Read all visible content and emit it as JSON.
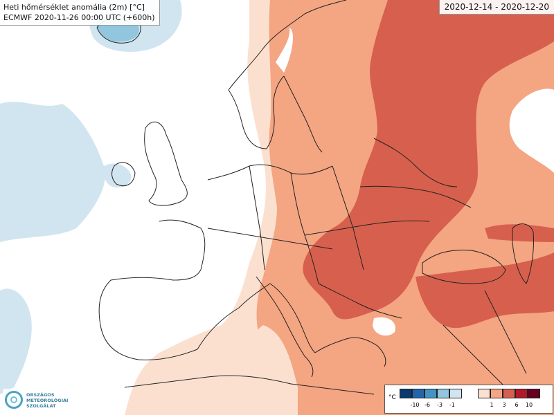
{
  "header": {
    "title": "Heti hőmérséklet anomália (2m) [°C]",
    "subtitle": "ECMWF 2020-11-26 00:00 UTC (+600h)",
    "date_range": "2020-12-14 - 2020-12-20"
  },
  "legend": {
    "unit": "°C",
    "negative": [
      {
        "label": "-10",
        "color": "#0b3a6e"
      },
      {
        "label": "-6",
        "color": "#2166ac"
      },
      {
        "label": "-3",
        "color": "#4393c3"
      },
      {
        "label": "-1",
        "color": "#92c5de"
      },
      {
        "label": "",
        "color": "#d1e5f0"
      }
    ],
    "positive": [
      {
        "label": "",
        "color": "#fbe0d0"
      },
      {
        "label": "1",
        "color": "#f4a582"
      },
      {
        "label": "3",
        "color": "#d6604d"
      },
      {
        "label": "6",
        "color": "#b2182b"
      },
      {
        "label": "10",
        "color": "#67001f"
      }
    ]
  },
  "map_colors": {
    "anomaly_0_1": "#fbe0d0",
    "anomaly_1_3": "#f4a582",
    "anomaly_3_6": "#d6604d",
    "anomaly_neg_0_1": "#d1e5f0",
    "anomaly_neg_1_3": "#92c5de",
    "neutral": "#ffffff",
    "borders": "#222222"
  },
  "logo": {
    "line1": "ORSZÁGOS",
    "line2": "METEOROLÓGIAI",
    "line3": "SZOLGÁLAT",
    "icon": "omsz-logo-icon"
  }
}
